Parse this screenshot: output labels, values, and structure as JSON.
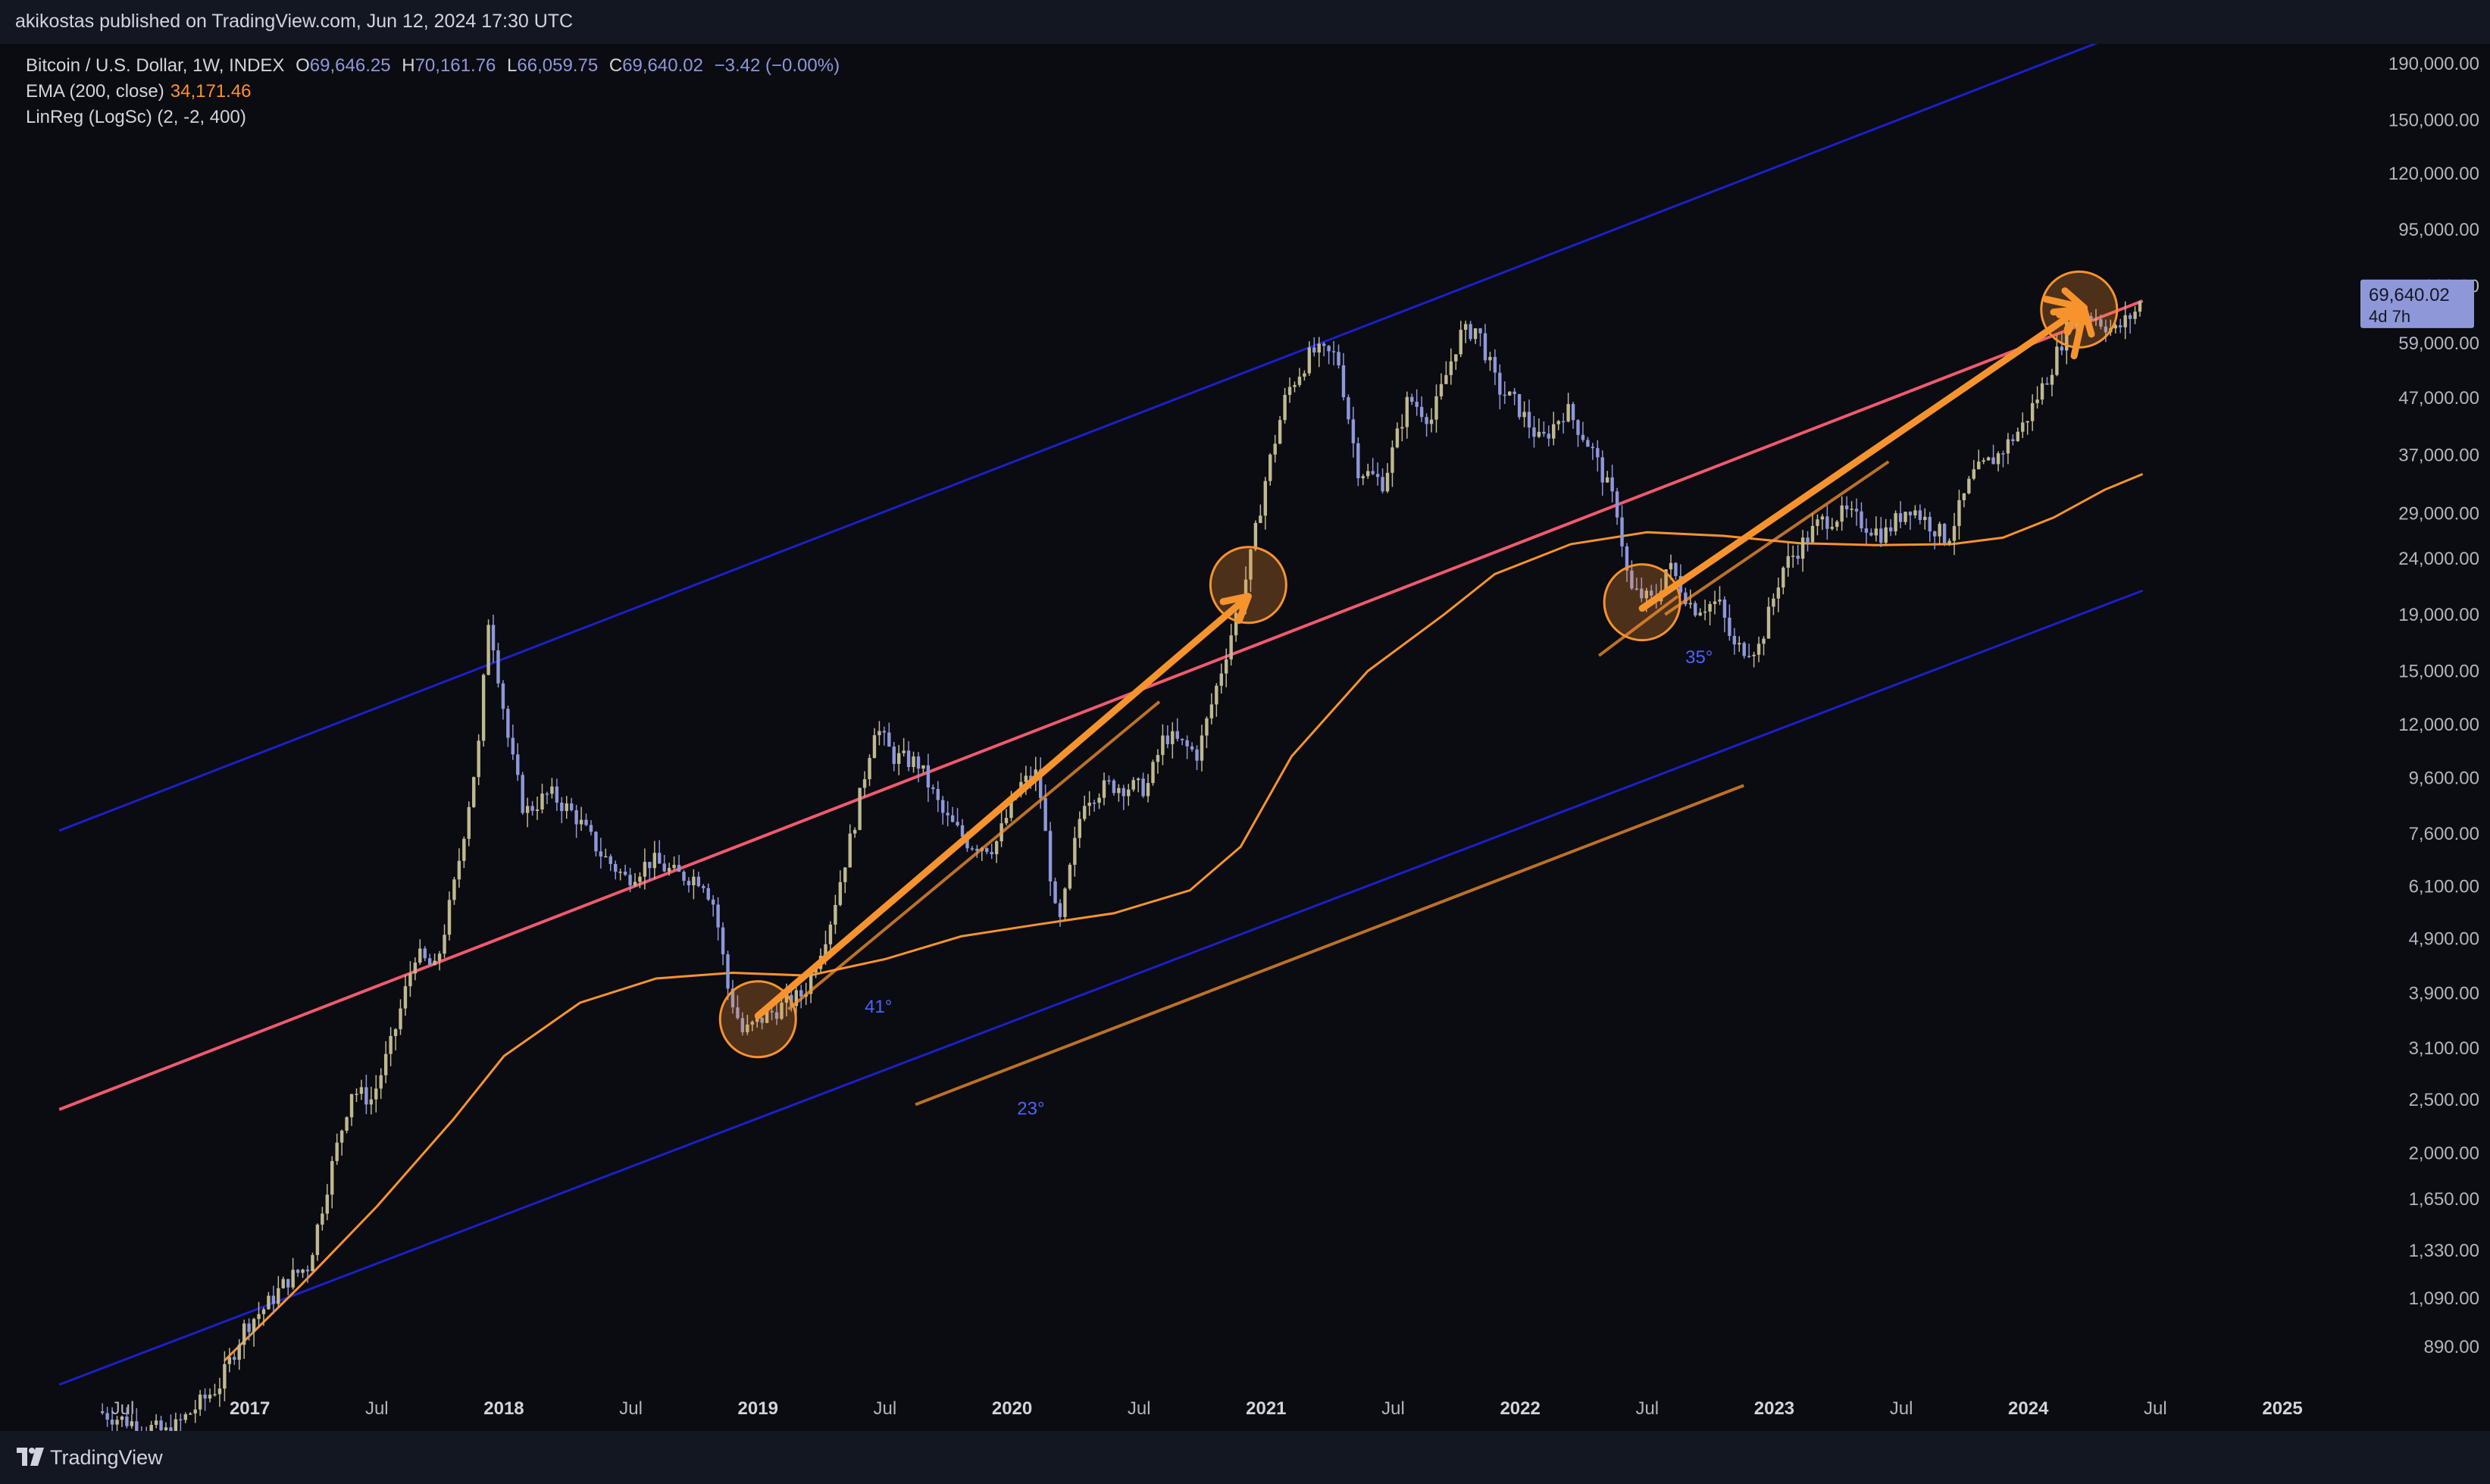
{
  "header": {
    "published": "akikostas published on TradingView.com, Jun 12, 2024 17:30 UTC"
  },
  "legend": {
    "symbol": "Bitcoin / U.S. Dollar, 1W, INDEX",
    "open": "69,646.25",
    "high": "70,161.76",
    "low": "66,059.75",
    "close": "69,640.02",
    "change": "−3.42 (−0.00%)",
    "ema_label": "EMA (200, close)",
    "ema_value": "34,171.46",
    "linreg_label": "LinReg (LogSc) (2, -2, 400)"
  },
  "price_tag": {
    "price": "69,640.02",
    "countdown": "4d 7h"
  },
  "footer": {
    "brand": "TradingView"
  },
  "colors": {
    "candle": "#bfb98f",
    "candle_down": "#8e98d9",
    "ema": "#f7932d",
    "regression_center": "#f05a6e",
    "regression_band": "#1b20c8",
    "arrow": "#f7932d",
    "angle_label": "#4c63ff",
    "price_tag": "#8e98d9"
  },
  "chart_data": {
    "type": "candlestick",
    "scale": "log",
    "y_ticks": [
      190000,
      150000,
      120000,
      95000,
      75000,
      59000,
      47000,
      37000,
      29000,
      24000,
      19000,
      15000,
      12000,
      9600,
      7600,
      6100,
      4900,
      3900,
      3100,
      2500,
      2000,
      1650,
      1330,
      1090,
      890
    ],
    "y_tick_labels": [
      "190,000.00",
      "150,000.00",
      "120,000.00",
      "95,000.00",
      "75,000.00",
      "59,000.00",
      "47,000.00",
      "37,000.00",
      "29,000.00",
      "24,000.00",
      "19,000.00",
      "15,000.00",
      "12,000.00",
      "9,600.00",
      "7,600.00",
      "6,100.00",
      "4,900.00",
      "3,900.00",
      "3,100.00",
      "2,500.00",
      "2,000.00",
      "1,650.00",
      "1,330.00",
      "1,090.00",
      "890.00"
    ],
    "x_ticks": [
      {
        "label": "Jul",
        "t": 2016.5,
        "bold": false
      },
      {
        "label": "2017",
        "t": 2017.0,
        "bold": true
      },
      {
        "label": "Jul",
        "t": 2017.5,
        "bold": false
      },
      {
        "label": "2018",
        "t": 2018.0,
        "bold": true
      },
      {
        "label": "Jul",
        "t": 2018.5,
        "bold": false
      },
      {
        "label": "2019",
        "t": 2019.0,
        "bold": true
      },
      {
        "label": "Jul",
        "t": 2019.5,
        "bold": false
      },
      {
        "label": "2020",
        "t": 2020.0,
        "bold": true
      },
      {
        "label": "Jul",
        "t": 2020.5,
        "bold": false
      },
      {
        "label": "2021",
        "t": 2021.0,
        "bold": true
      },
      {
        "label": "Jul",
        "t": 2021.5,
        "bold": false
      },
      {
        "label": "2022",
        "t": 2022.0,
        "bold": true
      },
      {
        "label": "Jul",
        "t": 2022.5,
        "bold": false
      },
      {
        "label": "2023",
        "t": 2023.0,
        "bold": true
      },
      {
        "label": "Jul",
        "t": 2023.5,
        "bold": false
      },
      {
        "label": "2024",
        "t": 2024.0,
        "bold": true
      },
      {
        "label": "Jul",
        "t": 2024.5,
        "bold": false
      },
      {
        "label": "2025",
        "t": 2025.0,
        "bold": true
      }
    ],
    "price_path": [
      [
        2016.42,
        680
      ],
      [
        2016.5,
        660
      ],
      [
        2016.7,
        620
      ],
      [
        2016.9,
        760
      ],
      [
        2017.0,
        970
      ],
      [
        2017.08,
        1050
      ],
      [
        2017.17,
        1180
      ],
      [
        2017.25,
        1250
      ],
      [
        2017.33,
        1800
      ],
      [
        2017.42,
        2600
      ],
      [
        2017.5,
        2500
      ],
      [
        2017.58,
        3200
      ],
      [
        2017.67,
        4600
      ],
      [
        2017.75,
        4300
      ],
      [
        2017.83,
        6300
      ],
      [
        2017.92,
        11000
      ],
      [
        2017.96,
        19000
      ],
      [
        2018.0,
        14500
      ],
      [
        2018.04,
        11000
      ],
      [
        2018.1,
        8300
      ],
      [
        2018.2,
        9000
      ],
      [
        2018.3,
        8200
      ],
      [
        2018.4,
        7000
      ],
      [
        2018.5,
        6300
      ],
      [
        2018.6,
        6800
      ],
      [
        2018.7,
        6400
      ],
      [
        2018.8,
        6300
      ],
      [
        2018.85,
        5600
      ],
      [
        2018.9,
        4000
      ],
      [
        2018.96,
        3300
      ],
      [
        2019.05,
        3550
      ],
      [
        2019.2,
        3900
      ],
      [
        2019.3,
        5200
      ],
      [
        2019.4,
        8000
      ],
      [
        2019.48,
        12000
      ],
      [
        2019.55,
        10500
      ],
      [
        2019.65,
        10200
      ],
      [
        2019.75,
        8200
      ],
      [
        2019.85,
        7300
      ],
      [
        2019.95,
        7200
      ],
      [
        2020.05,
        9300
      ],
      [
        2020.12,
        9800
      ],
      [
        2020.2,
        5000
      ],
      [
        2020.3,
        8800
      ],
      [
        2020.4,
        9300
      ],
      [
        2020.55,
        9200
      ],
      [
        2020.62,
        11500
      ],
      [
        2020.75,
        10600
      ],
      [
        2020.85,
        15500
      ],
      [
        2020.95,
        23000
      ],
      [
        2021.02,
        34000
      ],
      [
        2021.1,
        48000
      ],
      [
        2021.2,
        57000
      ],
      [
        2021.3,
        56000
      ],
      [
        2021.38,
        35000
      ],
      [
        2021.48,
        33000
      ],
      [
        2021.58,
        47000
      ],
      [
        2021.67,
        43000
      ],
      [
        2021.78,
        61000
      ],
      [
        2021.85,
        63000
      ],
      [
        2021.93,
        49000
      ],
      [
        2022.0,
        46000
      ],
      [
        2022.1,
        39000
      ],
      [
        2022.2,
        45000
      ],
      [
        2022.3,
        38000
      ],
      [
        2022.4,
        29500
      ],
      [
        2022.45,
        21000
      ],
      [
        2022.55,
        20000
      ],
      [
        2022.6,
        23500
      ],
      [
        2022.7,
        19500
      ],
      [
        2022.8,
        20000
      ],
      [
        2022.86,
        16500
      ],
      [
        2022.96,
        16600
      ],
      [
        2023.05,
        23000
      ],
      [
        2023.2,
        28000
      ],
      [
        2023.3,
        29000
      ],
      [
        2023.45,
        26500
      ],
      [
        2023.55,
        30000
      ],
      [
        2023.7,
        26000
      ],
      [
        2023.8,
        34000
      ],
      [
        2023.9,
        37000
      ],
      [
        2024.0,
        42000
      ],
      [
        2024.1,
        52000
      ],
      [
        2024.2,
        68000
      ],
      [
        2024.28,
        66000
      ],
      [
        2024.36,
        62000
      ],
      [
        2024.44,
        67500
      ],
      [
        2024.45,
        69640.02
      ]
    ],
    "ema200": [
      [
        2016.9,
        840
      ],
      [
        2017.2,
        1150
      ],
      [
        2017.5,
        1600
      ],
      [
        2017.8,
        2300
      ],
      [
        2018.0,
        3000
      ],
      [
        2018.3,
        3750
      ],
      [
        2018.6,
        4150
      ],
      [
        2018.9,
        4250
      ],
      [
        2019.2,
        4200
      ],
      [
        2019.5,
        4500
      ],
      [
        2019.8,
        4950
      ],
      [
        2020.1,
        5200
      ],
      [
        2020.4,
        5450
      ],
      [
        2020.7,
        6000
      ],
      [
        2020.9,
        7200
      ],
      [
        2021.1,
        10500
      ],
      [
        2021.4,
        15000
      ],
      [
        2021.7,
        19000
      ],
      [
        2021.9,
        22500
      ],
      [
        2022.2,
        25500
      ],
      [
        2022.5,
        26800
      ],
      [
        2022.8,
        26400
      ],
      [
        2023.1,
        25600
      ],
      [
        2023.4,
        25400
      ],
      [
        2023.7,
        25500
      ],
      [
        2023.9,
        26200
      ],
      [
        2024.1,
        28500
      ],
      [
        2024.3,
        32000
      ],
      [
        2024.45,
        34171.46
      ]
    ],
    "regression": {
      "t_start": 2016.25,
      "t_end": 2024.45,
      "center": [
        2400,
        70500
      ],
      "upper": [
        7700,
        223000
      ],
      "lower": [
        760,
        21000
      ]
    },
    "annotations": {
      "angles": [
        {
          "label": "41°",
          "t": 2019.42,
          "price": 3600
        },
        {
          "label": "23°",
          "t": 2020.02,
          "price": 2350
        },
        {
          "label": "35°",
          "t": 2022.65,
          "price": 15500
        }
      ],
      "arrows": [
        {
          "from": [
            2019.0,
            3550
          ],
          "to": [
            2020.93,
            20500
          ]
        },
        {
          "from": [
            2022.48,
            19500
          ],
          "to": [
            2024.2,
            68000
          ]
        },
        {
          "from": [
            2024.07,
            71000
          ],
          "to": [
            2024.22,
            68500
          ]
        },
        {
          "from": [
            2024.18,
            56000
          ],
          "to": [
            2024.22,
            68000
          ]
        }
      ],
      "thin_lines": [
        {
          "from": [
            2019.12,
            3650
          ],
          "to": [
            2020.58,
            13200
          ]
        },
        {
          "from": [
            2022.57,
            19000
          ],
          "to": [
            2023.45,
            36000
          ]
        },
        {
          "from": [
            2022.31,
            16000
          ],
          "to": [
            2022.62,
            20500
          ]
        },
        {
          "from": [
            2019.62,
            2450
          ],
          "to": [
            2022.88,
            9300
          ]
        }
      ],
      "circles": [
        {
          "t": 2019.0,
          "price": 3500
        },
        {
          "t": 2020.93,
          "price": 21500
        },
        {
          "t": 2022.48,
          "price": 20000
        },
        {
          "t": 2024.2,
          "price": 68000
        }
      ]
    }
  }
}
